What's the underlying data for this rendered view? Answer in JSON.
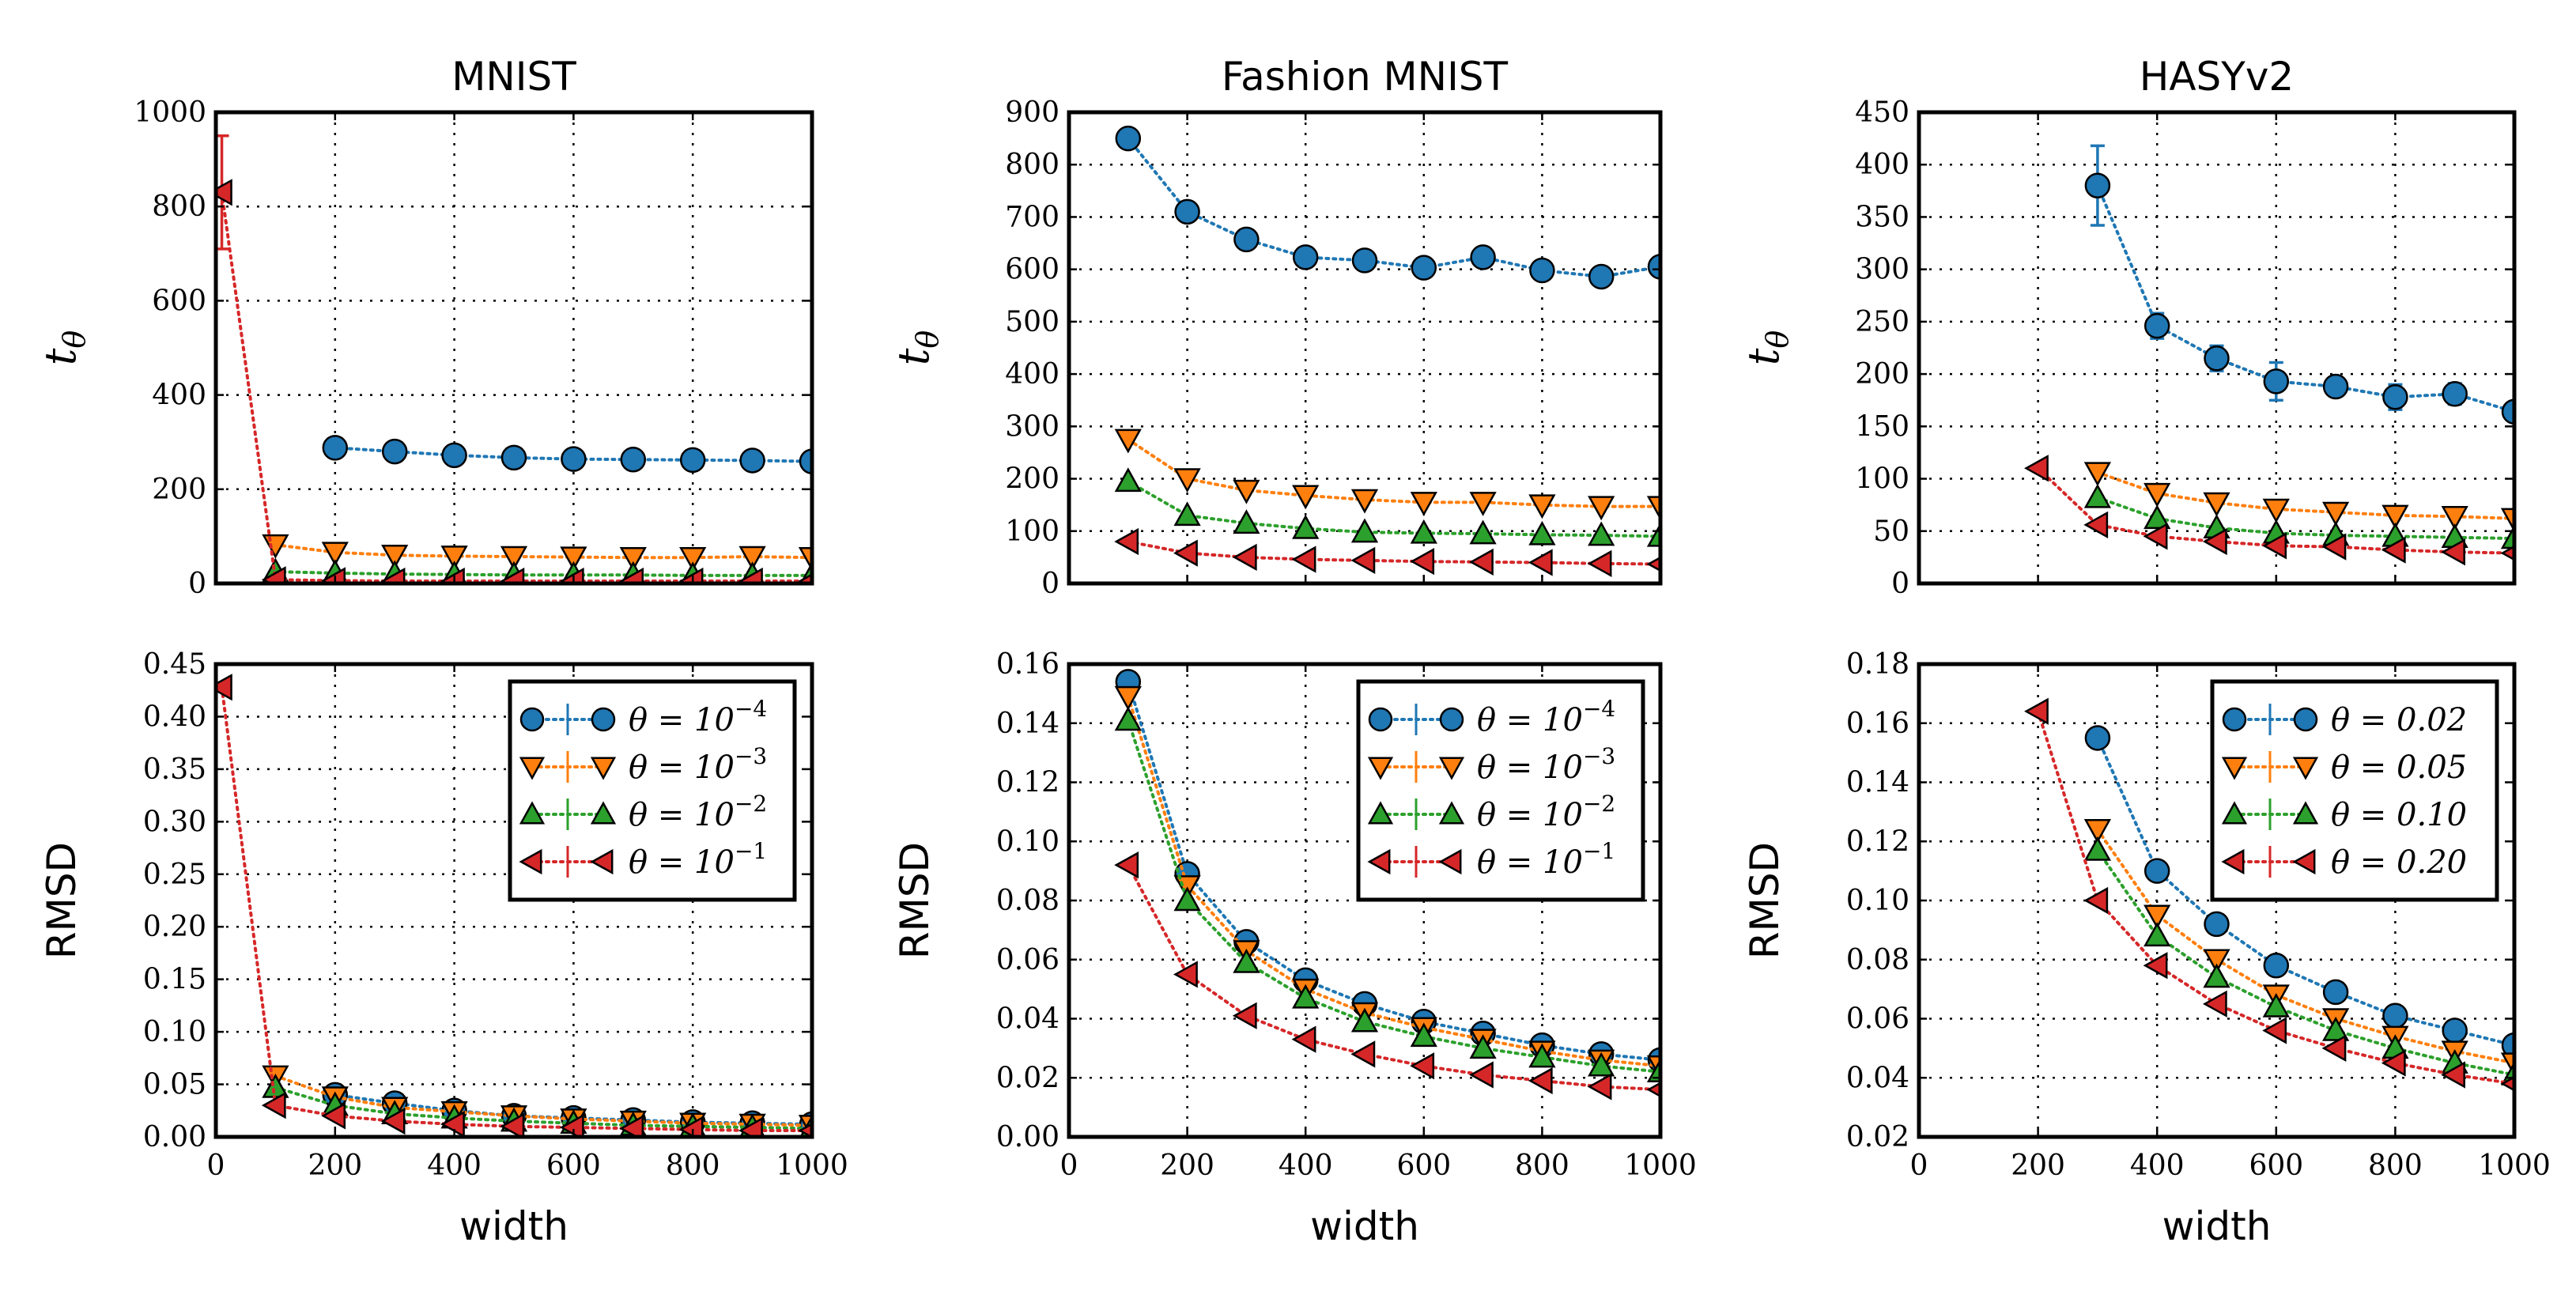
{
  "figure": {
    "xlabel": "width"
  },
  "colors": {
    "c0": "#1f77b4",
    "c1": "#ff7f0e",
    "c2": "#2ca02c",
    "c3": "#d62728"
  },
  "chart_data": [
    {
      "id": "mnist_t",
      "type": "line",
      "title": "MNIST",
      "xlabel": "",
      "ylabel": "t_θ",
      "xlim": [
        0,
        1000
      ],
      "ylim": [
        0,
        1000
      ],
      "xticks": [
        0,
        200,
        400,
        600,
        800,
        1000
      ],
      "xticklabels_shown": false,
      "yticks": [
        "0",
        "200",
        "400",
        "600",
        "800",
        "1000"
      ],
      "series": [
        {
          "name": "θ = 10^-4",
          "marker": "circle",
          "color": "#1f77b4",
          "x": [
            200,
            300,
            400,
            500,
            600,
            700,
            800,
            900,
            1000
          ],
          "y": [
            288,
            280,
            272,
            267,
            264,
            263,
            262,
            261,
            259
          ]
        },
        {
          "name": "θ = 10^-3",
          "marker": "tri-down",
          "color": "#ff7f0e",
          "x": [
            100,
            200,
            300,
            400,
            500,
            600,
            700,
            800,
            900,
            1000
          ],
          "y": [
            82,
            66,
            60,
            58,
            57,
            56,
            55,
            55,
            57,
            55
          ]
        },
        {
          "name": "θ = 10^-2",
          "marker": "tri-up",
          "color": "#2ca02c",
          "x": [
            100,
            200,
            300,
            400,
            500,
            600,
            700,
            800,
            900,
            1000
          ],
          "y": [
            25,
            22,
            20,
            19,
            18,
            18,
            18,
            17,
            17,
            17
          ]
        },
        {
          "name": "θ = 10^-1",
          "marker": "tri-left",
          "color": "#d62728",
          "x": [
            10,
            100,
            200,
            300,
            400,
            500,
            600,
            700,
            800,
            900,
            1000
          ],
          "y": [
            830,
            8,
            6,
            5,
            5,
            5,
            5,
            5,
            5,
            5,
            5
          ],
          "err": [
            120,
            0,
            0,
            0,
            0,
            0,
            0,
            0,
            0,
            0,
            0
          ]
        }
      ]
    },
    {
      "id": "fashion_t",
      "type": "line",
      "title": "Fashion MNIST",
      "xlabel": "",
      "ylabel": "t_θ",
      "xlim": [
        0,
        1000
      ],
      "ylim": [
        0,
        900
      ],
      "xticks": [
        0,
        200,
        400,
        600,
        800,
        1000
      ],
      "xticklabels_shown": false,
      "yticks": [
        "0",
        "100",
        "200",
        "300",
        "400",
        "500",
        "600",
        "700",
        "800",
        "900"
      ],
      "series": [
        {
          "name": "θ = 10^-4",
          "marker": "circle",
          "color": "#1f77b4",
          "x": [
            100,
            200,
            300,
            400,
            500,
            600,
            700,
            800,
            900,
            1000
          ],
          "y": [
            850,
            710,
            657,
            623,
            617,
            603,
            623,
            598,
            586,
            605
          ]
        },
        {
          "name": "θ = 10^-3",
          "marker": "tri-down",
          "color": "#ff7f0e",
          "x": [
            100,
            200,
            300,
            400,
            500,
            600,
            700,
            800,
            900,
            1000
          ],
          "y": [
            275,
            200,
            178,
            168,
            160,
            155,
            155,
            150,
            147,
            147
          ]
        },
        {
          "name": "θ = 10^-2",
          "marker": "tri-up",
          "color": "#2ca02c",
          "x": [
            100,
            200,
            300,
            400,
            500,
            600,
            700,
            800,
            900,
            1000
          ],
          "y": [
            195,
            130,
            115,
            105,
            98,
            96,
            95,
            93,
            92,
            90
          ]
        },
        {
          "name": "θ = 10^-1",
          "marker": "tri-left",
          "color": "#d62728",
          "x": [
            100,
            200,
            300,
            400,
            500,
            600,
            700,
            800,
            900,
            1000
          ],
          "y": [
            80,
            58,
            50,
            46,
            44,
            42,
            41,
            40,
            38,
            37
          ]
        }
      ]
    },
    {
      "id": "hasy_t",
      "type": "line",
      "title": "HASYv2",
      "xlabel": "",
      "ylabel": "t_θ",
      "xlim": [
        0,
        1000
      ],
      "ylim": [
        0,
        450
      ],
      "xticks": [
        0,
        200,
        400,
        600,
        800,
        1000
      ],
      "xticklabels_shown": false,
      "yticks": [
        "0",
        "50",
        "100",
        "150",
        "200",
        "250",
        "300",
        "350",
        "400",
        "450"
      ],
      "series": [
        {
          "name": "θ = 0.02",
          "marker": "circle",
          "color": "#1f77b4",
          "x": [
            300,
            400,
            500,
            600,
            700,
            800,
            900,
            1000
          ],
          "y": [
            380,
            246,
            215,
            193,
            188,
            178,
            181,
            164
          ],
          "err": [
            38,
            12,
            12,
            18,
            8,
            12,
            10,
            8
          ]
        },
        {
          "name": "θ = 0.05",
          "marker": "tri-down",
          "color": "#ff7f0e",
          "x": [
            300,
            400,
            500,
            600,
            700,
            800,
            900,
            1000
          ],
          "y": [
            106,
            86,
            77,
            71,
            68,
            65,
            64,
            62
          ]
        },
        {
          "name": "θ = 0.10",
          "marker": "tri-up",
          "color": "#2ca02c",
          "x": [
            300,
            400,
            500,
            600,
            700,
            800,
            900,
            1000
          ],
          "y": [
            82,
            62,
            53,
            48,
            46,
            45,
            44,
            43
          ]
        },
        {
          "name": "θ = 0.20",
          "marker": "tri-left",
          "color": "#d62728",
          "x": [
            200,
            300,
            400,
            500,
            600,
            700,
            800,
            900,
            1000
          ],
          "y": [
            110,
            56,
            45,
            40,
            36,
            35,
            32,
            30,
            29
          ]
        }
      ]
    },
    {
      "id": "mnist_r",
      "type": "line",
      "title": "",
      "xlabel": "width",
      "ylabel": "RMSD",
      "xlim": [
        0,
        1000
      ],
      "ylim": [
        0,
        0.45
      ],
      "xticks": [
        0,
        200,
        400,
        600,
        800,
        1000
      ],
      "xticklabels_shown": true,
      "yticks": [
        "0.00",
        "0.05",
        "0.10",
        "0.15",
        "0.20",
        "0.25",
        "0.30",
        "0.35",
        "0.40",
        "0.45"
      ],
      "legend": "top-right",
      "legend_labels": [
        {
          "base": "θ = 10",
          "exp": "−4"
        },
        {
          "base": "θ = 10",
          "exp": "−3"
        },
        {
          "base": "θ = 10",
          "exp": "−2"
        },
        {
          "base": "θ = 10",
          "exp": "−1"
        }
      ],
      "series": [
        {
          "name": "θ = 10^-4",
          "marker": "circle",
          "color": "#1f77b4",
          "x": [
            200,
            300,
            400,
            500,
            600,
            700,
            800,
            900,
            1000
          ],
          "y": [
            0.04,
            0.032,
            0.025,
            0.02,
            0.018,
            0.016,
            0.014,
            0.013,
            0.012
          ]
        },
        {
          "name": "θ = 10^-3",
          "marker": "tri-down",
          "color": "#ff7f0e",
          "x": [
            100,
            200,
            300,
            400,
            500,
            600,
            700,
            800,
            900,
            1000
          ],
          "y": [
            0.058,
            0.038,
            0.028,
            0.024,
            0.02,
            0.017,
            0.015,
            0.013,
            0.012,
            0.011
          ]
        },
        {
          "name": "θ = 10^-2",
          "marker": "tri-up",
          "color": "#2ca02c",
          "x": [
            100,
            200,
            300,
            400,
            500,
            600,
            700,
            800,
            900,
            1000
          ],
          "y": [
            0.047,
            0.03,
            0.022,
            0.018,
            0.015,
            0.013,
            0.011,
            0.01,
            0.009,
            0.008
          ]
        },
        {
          "name": "θ = 10^-1",
          "marker": "tri-left",
          "color": "#d62728",
          "x": [
            10,
            100,
            200,
            300,
            400,
            500,
            600,
            700,
            800,
            900,
            1000
          ],
          "y": [
            0.428,
            0.03,
            0.02,
            0.015,
            0.012,
            0.01,
            0.009,
            0.008,
            0.007,
            0.006,
            0.006
          ]
        }
      ]
    },
    {
      "id": "fashion_r",
      "type": "line",
      "title": "",
      "xlabel": "width",
      "ylabel": "RMSD",
      "xlim": [
        0,
        1000
      ],
      "ylim": [
        0,
        0.16
      ],
      "xticks": [
        0,
        200,
        400,
        600,
        800,
        1000
      ],
      "xticklabels_shown": true,
      "yticks": [
        "0.00",
        "0.02",
        "0.04",
        "0.06",
        "0.08",
        "0.10",
        "0.12",
        "0.14",
        "0.16"
      ],
      "legend": "top-right",
      "legend_labels": [
        {
          "base": "θ = 10",
          "exp": "−4"
        },
        {
          "base": "θ = 10",
          "exp": "−3"
        },
        {
          "base": "θ = 10",
          "exp": "−2"
        },
        {
          "base": "θ = 10",
          "exp": "−1"
        }
      ],
      "series": [
        {
          "name": "θ = 10^-4",
          "marker": "circle",
          "color": "#1f77b4",
          "x": [
            100,
            200,
            300,
            400,
            500,
            600,
            700,
            800,
            900,
            1000
          ],
          "y": [
            0.154,
            0.089,
            0.066,
            0.053,
            0.045,
            0.039,
            0.035,
            0.031,
            0.028,
            0.026
          ]
        },
        {
          "name": "θ = 10^-3",
          "marker": "tri-down",
          "color": "#ff7f0e",
          "x": [
            100,
            200,
            300,
            400,
            500,
            600,
            700,
            800,
            900,
            1000
          ],
          "y": [
            0.149,
            0.085,
            0.063,
            0.05,
            0.042,
            0.037,
            0.033,
            0.029,
            0.026,
            0.024
          ]
        },
        {
          "name": "θ = 10^-2",
          "marker": "tri-up",
          "color": "#2ca02c",
          "x": [
            100,
            200,
            300,
            400,
            500,
            600,
            700,
            800,
            900,
            1000
          ],
          "y": [
            0.141,
            0.08,
            0.059,
            0.047,
            0.039,
            0.034,
            0.03,
            0.027,
            0.024,
            0.022
          ]
        },
        {
          "name": "θ = 10^-1",
          "marker": "tri-left",
          "color": "#d62728",
          "x": [
            100,
            200,
            300,
            400,
            500,
            600,
            700,
            800,
            900,
            1000
          ],
          "y": [
            0.092,
            0.055,
            0.041,
            0.033,
            0.028,
            0.024,
            0.021,
            0.019,
            0.017,
            0.016
          ]
        }
      ]
    },
    {
      "id": "hasy_r",
      "type": "line",
      "title": "",
      "xlabel": "width",
      "ylabel": "RMSD",
      "xlim": [
        0,
        1000
      ],
      "ylim": [
        0.02,
        0.18
      ],
      "xticks": [
        0,
        200,
        400,
        600,
        800,
        1000
      ],
      "xticklabels_shown": true,
      "yticks": [
        "0.02",
        "0.04",
        "0.06",
        "0.08",
        "0.10",
        "0.12",
        "0.14",
        "0.16",
        "0.18"
      ],
      "legend": "top-right",
      "legend_labels": [
        {
          "base": "θ = 0.02",
          "exp": ""
        },
        {
          "base": "θ = 0.05",
          "exp": ""
        },
        {
          "base": "θ = 0.10",
          "exp": ""
        },
        {
          "base": "θ = 0.20",
          "exp": ""
        }
      ],
      "series": [
        {
          "name": "θ = 0.02",
          "marker": "circle",
          "color": "#1f77b4",
          "x": [
            300,
            400,
            500,
            600,
            700,
            800,
            900,
            1000
          ],
          "y": [
            0.155,
            0.11,
            0.092,
            0.078,
            0.069,
            0.061,
            0.056,
            0.051
          ]
        },
        {
          "name": "θ = 0.05",
          "marker": "tri-down",
          "color": "#ff7f0e",
          "x": [
            300,
            400,
            500,
            600,
            700,
            800,
            900,
            1000
          ],
          "y": [
            0.124,
            0.095,
            0.08,
            0.068,
            0.06,
            0.054,
            0.049,
            0.045
          ]
        },
        {
          "name": "θ = 0.10",
          "marker": "tri-up",
          "color": "#2ca02c",
          "x": [
            300,
            400,
            500,
            600,
            700,
            800,
            900,
            1000
          ],
          "y": [
            0.117,
            0.088,
            0.074,
            0.064,
            0.056,
            0.05,
            0.045,
            0.041
          ]
        },
        {
          "name": "θ = 0.20",
          "marker": "tri-left",
          "color": "#d62728",
          "x": [
            200,
            300,
            400,
            500,
            600,
            700,
            800,
            900,
            1000
          ],
          "y": [
            0.164,
            0.1,
            0.078,
            0.065,
            0.056,
            0.05,
            0.045,
            0.041,
            0.038
          ]
        }
      ]
    }
  ]
}
